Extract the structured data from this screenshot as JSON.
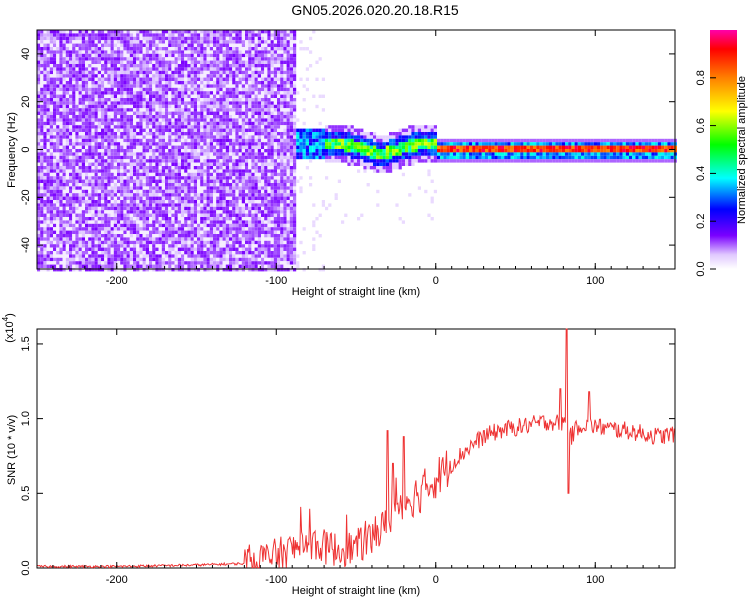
{
  "title": "GN05.2026.020.20.18.R15",
  "chart_data": [
    {
      "type": "heatmap",
      "xlabel": "Height of straight line (km)",
      "ylabel": "Frequency (Hz)",
      "xlim": [
        -250,
        150
      ],
      "ylim": [
        -50,
        50
      ],
      "xticks": [
        -200,
        -100,
        0,
        100
      ],
      "yticks": [
        -40,
        -20,
        0,
        20,
        40
      ],
      "colorbar": {
        "label": "Normalized spectral amplitude",
        "range": [
          0,
          1
        ],
        "ticks": [
          "0.0",
          "0.2",
          "0.4",
          "0.6",
          "0.8"
        ],
        "colors": [
          "#ffffff",
          "#6a00ff",
          "#0000ff",
          "#00ffff",
          "#00ff00",
          "#ffff00",
          "#ff8000",
          "#ff0000",
          "#ff00aa"
        ]
      },
      "regions": [
        {
          "x": [
            -250,
            -88
          ],
          "freq": [
            -50,
            50
          ],
          "amplitude": 0.12,
          "pattern": "noise"
        },
        {
          "x": [
            -88,
            0
          ],
          "freq_center": 3,
          "amplitude": 0.45,
          "pattern": "broad band"
        },
        {
          "x": [
            0,
            150
          ],
          "freq_center": 0.5,
          "amplitude": 0.9,
          "pattern": "narrow band"
        }
      ]
    },
    {
      "type": "line",
      "xlabel": "Height of straight line (km)",
      "ylabel": "SNR (10 * v/v)",
      "yscale_label": "(x10",
      "yscale_exp": "4",
      "yscale_close": ")",
      "xlim": [
        -250,
        150
      ],
      "ylim": [
        0,
        1.6
      ],
      "xticks": [
        -200,
        -100,
        0,
        100
      ],
      "yticks": [
        "0.0",
        "0.5",
        "1.0",
        "1.5"
      ],
      "series": [
        {
          "color": "#ee3333",
          "x": [
            -250,
            -200,
            -150,
            -120,
            -110,
            -100,
            -90,
            -80,
            -70,
            -60,
            -50,
            -40,
            -30,
            -25,
            -20,
            -10,
            0,
            10,
            20,
            30,
            40,
            50,
            60,
            70,
            80,
            82,
            85,
            90,
            100,
            110,
            120,
            130,
            140,
            150
          ],
          "y": [
            0.01,
            0.01,
            0.02,
            0.03,
            0.06,
            0.08,
            0.12,
            0.18,
            0.14,
            0.12,
            0.14,
            0.2,
            0.3,
            0.4,
            0.45,
            0.5,
            0.6,
            0.7,
            0.8,
            0.88,
            0.92,
            0.94,
            0.96,
            0.98,
            0.97,
            1.05,
            0.88,
            0.96,
            0.95,
            0.93,
            0.92,
            0.9,
            0.88,
            0.9
          ],
          "spikes": [
            [
              -30,
              0.92
            ],
            [
              -20,
              0.88
            ],
            [
              -27,
              0.7
            ],
            [
              82,
              1.62
            ],
            [
              83,
              0.5
            ],
            [
              78,
              1.2
            ],
            [
              96,
              1.18
            ]
          ]
        }
      ]
    }
  ]
}
